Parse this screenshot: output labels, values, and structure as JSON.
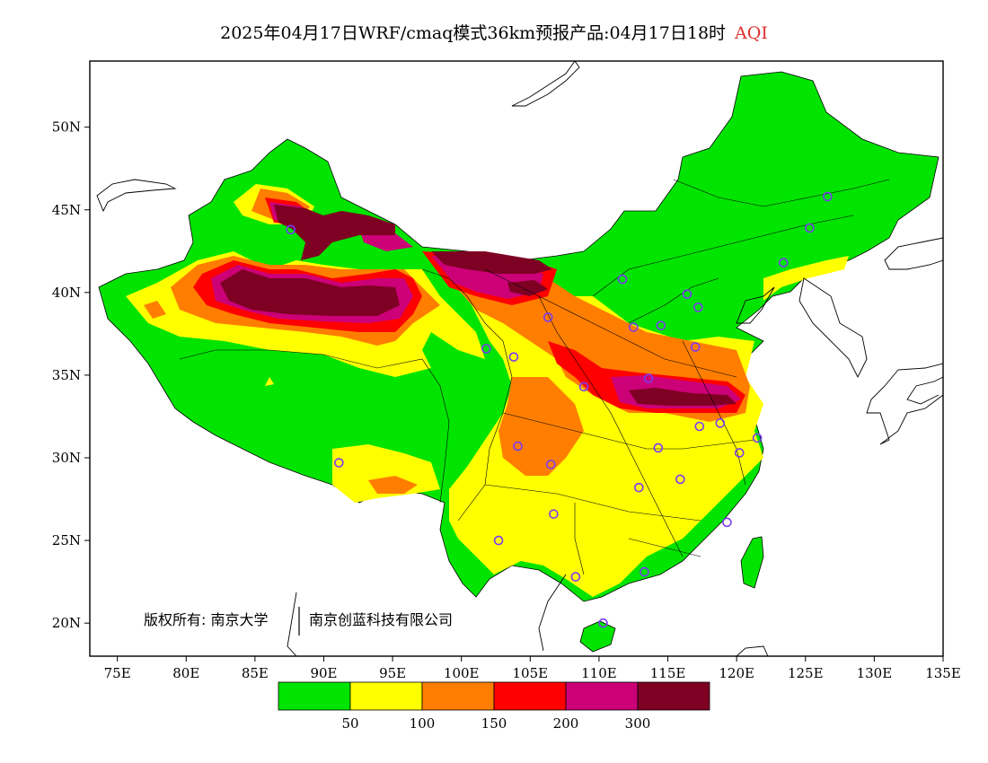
{
  "title": {
    "main": "2025年04月17日WRF/cmaq模式36km预报产品:04月17日18时",
    "variable": "AQI",
    "variable_color": "#e03030"
  },
  "axes": {
    "x_labels": [
      "75E",
      "80E",
      "85E",
      "90E",
      "95E",
      "100E",
      "105E",
      "110E",
      "115E",
      "120E",
      "125E",
      "130E",
      "135E"
    ],
    "y_labels": [
      "50N",
      "45N",
      "40N",
      "35N",
      "30N",
      "25N",
      "20N"
    ]
  },
  "copyright": {
    "left": "版权所有: 南京大学",
    "right": "南京创蓝科技有限公司"
  },
  "legend": {
    "colors": [
      "#00e400",
      "#ffff00",
      "#ff7e00",
      "#ff0000",
      "#cc0077",
      "#7e0023"
    ],
    "labels": [
      "50",
      "100",
      "150",
      "200",
      "300"
    ]
  },
  "chart_data": {
    "type": "heatmap",
    "variable": "AQI",
    "x_range": [
      73,
      135
    ],
    "y_range": [
      18,
      54
    ],
    "x_ticks": [
      75,
      80,
      85,
      90,
      95,
      100,
      105,
      110,
      115,
      120,
      125,
      130,
      135
    ],
    "y_ticks": [
      50,
      45,
      40,
      35,
      30,
      25,
      20
    ],
    "color_scale": {
      "breaks": [
        50,
        100,
        150,
        200,
        300
      ],
      "colors": [
        "#00e400",
        "#ffff00",
        "#ff7e00",
        "#ff0000",
        "#cc0077",
        "#7e0023"
      ]
    },
    "stations": [
      {
        "lon": 87.6,
        "lat": 43.8
      },
      {
        "lon": 126.6,
        "lat": 45.8
      },
      {
        "lon": 125.3,
        "lat": 43.9
      },
      {
        "lon": 123.4,
        "lat": 41.8
      },
      {
        "lon": 111.7,
        "lat": 40.8
      },
      {
        "lon": 116.4,
        "lat": 39.9
      },
      {
        "lon": 117.2,
        "lat": 39.1
      },
      {
        "lon": 112.5,
        "lat": 37.9
      },
      {
        "lon": 114.5,
        "lat": 38.0
      },
      {
        "lon": 117.0,
        "lat": 36.7
      },
      {
        "lon": 106.3,
        "lat": 38.5
      },
      {
        "lon": 101.8,
        "lat": 36.6
      },
      {
        "lon": 103.8,
        "lat": 36.1
      },
      {
        "lon": 108.9,
        "lat": 34.3
      },
      {
        "lon": 113.6,
        "lat": 34.8
      },
      {
        "lon": 117.3,
        "lat": 31.9
      },
      {
        "lon": 118.8,
        "lat": 32.1
      },
      {
        "lon": 121.5,
        "lat": 31.2
      },
      {
        "lon": 120.2,
        "lat": 30.3
      },
      {
        "lon": 114.3,
        "lat": 30.6
      },
      {
        "lon": 104.1,
        "lat": 30.7
      },
      {
        "lon": 106.5,
        "lat": 29.6
      },
      {
        "lon": 91.1,
        "lat": 29.7
      },
      {
        "lon": 112.9,
        "lat": 28.2
      },
      {
        "lon": 115.9,
        "lat": 28.7
      },
      {
        "lon": 106.7,
        "lat": 26.6
      },
      {
        "lon": 102.7,
        "lat": 25.0
      },
      {
        "lon": 119.3,
        "lat": 26.1
      },
      {
        "lon": 113.3,
        "lat": 23.1
      },
      {
        "lon": 108.3,
        "lat": 22.8
      },
      {
        "lon": 110.3,
        "lat": 20.0
      }
    ]
  }
}
